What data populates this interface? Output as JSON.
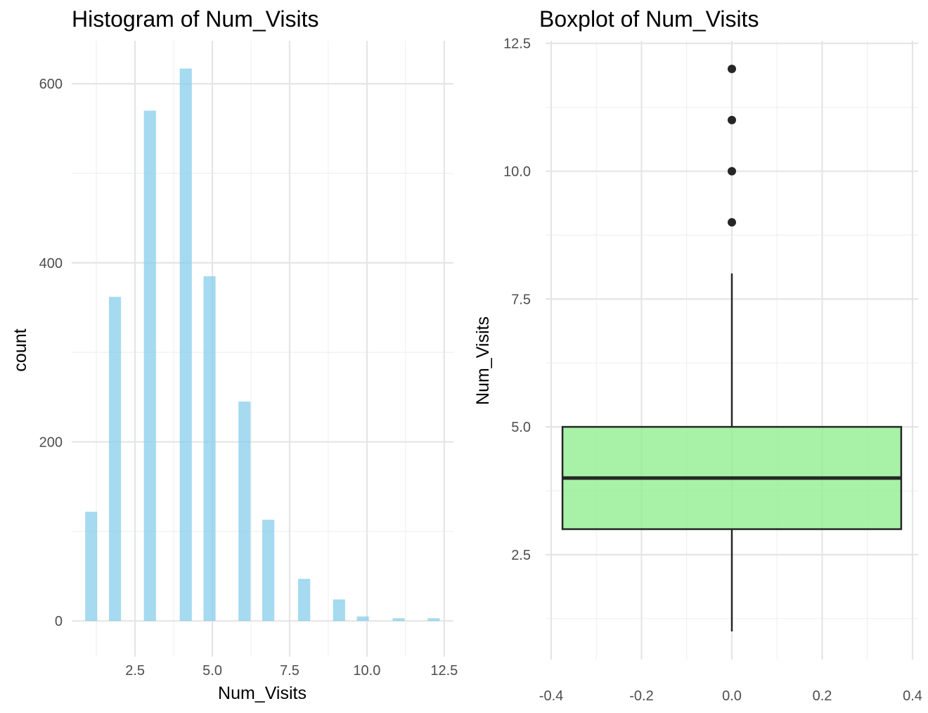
{
  "figure": {
    "background": "#ffffff",
    "layout": "two panels side by side"
  },
  "chart_data": [
    {
      "type": "bar",
      "title": "Histogram of Num_Visits",
      "xlabel": "Num_Visits",
      "ylabel": "count",
      "bar_color": "#87CEEB",
      "grid": true,
      "xlim": [
        0.45,
        12.8
      ],
      "ylim": [
        -40,
        648
      ],
      "x_ticks": [
        2.5,
        5.0,
        7.5,
        10.0,
        12.5
      ],
      "x_tick_labels": [
        "2.5",
        "5.0",
        "7.5",
        "10.0",
        "12.5"
      ],
      "y_ticks": [
        0,
        200,
        400,
        600
      ],
      "y_tick_labels": [
        "0",
        "200",
        "400",
        "600"
      ],
      "bin_width": 0.39,
      "bins": [
        {
          "x": 1.08,
          "count": 122
        },
        {
          "x": 1.85,
          "count": 362
        },
        {
          "x": 2.98,
          "count": 570
        },
        {
          "x": 4.14,
          "count": 617
        },
        {
          "x": 4.91,
          "count": 385
        },
        {
          "x": 6.04,
          "count": 245
        },
        {
          "x": 6.81,
          "count": 113
        },
        {
          "x": 7.97,
          "count": 47
        },
        {
          "x": 9.1,
          "count": 24
        },
        {
          "x": 9.87,
          "count": 5
        },
        {
          "x": 11.03,
          "count": 3
        },
        {
          "x": 12.16,
          "count": 3
        }
      ]
    },
    {
      "type": "box",
      "title": "Boxplot of Num_Visits",
      "xlabel": "",
      "ylabel": "Num_Visits",
      "fill_color": "#90EE90",
      "grid": true,
      "xlim": [
        -0.4125,
        0.4125
      ],
      "ylim": [
        0.45,
        12.55
      ],
      "x_ticks": [
        -0.4,
        -0.2,
        0.0,
        0.2,
        0.4
      ],
      "x_tick_labels": [
        "-0.4",
        "-0.2",
        "0.0",
        "0.2",
        "0.4"
      ],
      "y_ticks": [
        2.5,
        5.0,
        7.5,
        10.0,
        12.5
      ],
      "y_tick_labels": [
        "2.5",
        "5.0",
        "7.5",
        "10.0",
        "12.5"
      ],
      "box": {
        "x_center": 0,
        "half_width": 0.375,
        "min": 1,
        "q1": 3,
        "median": 4,
        "q3": 5,
        "max": 8,
        "outliers": [
          9,
          10,
          11,
          12
        ]
      }
    }
  ]
}
